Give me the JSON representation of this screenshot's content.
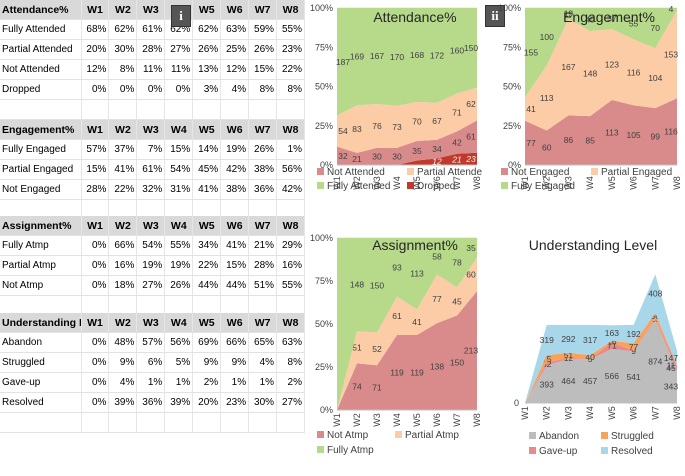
{
  "weeks": [
    "W1",
    "W2",
    "W3",
    "W4",
    "W5",
    "W6",
    "W7",
    "W8"
  ],
  "tables": [
    {
      "title": "Attendance%",
      "rows": [
        {
          "label": "Fully Attended",
          "values": [
            "68%",
            "62%",
            "61%",
            "62%",
            "62%",
            "63%",
            "59%",
            "55%"
          ]
        },
        {
          "label": "Partial Attended",
          "values": [
            "20%",
            "30%",
            "28%",
            "27%",
            "26%",
            "25%",
            "26%",
            "23%"
          ]
        },
        {
          "label": "Not Attended",
          "values": [
            "12%",
            "8%",
            "11%",
            "11%",
            "13%",
            "12%",
            "15%",
            "22%"
          ]
        },
        {
          "label": "Dropped",
          "values": [
            "0%",
            "0%",
            "0%",
            "0%",
            "3%",
            "4%",
            "8%",
            "8%"
          ]
        }
      ]
    },
    {
      "title": "Engagement%",
      "rows": [
        {
          "label": "Fully Engaged",
          "values": [
            "57%",
            "37%",
            "7%",
            "15%",
            "14%",
            "19%",
            "26%",
            "1%"
          ]
        },
        {
          "label": "Partial Engaged",
          "values": [
            "15%",
            "41%",
            "61%",
            "54%",
            "45%",
            "42%",
            "38%",
            "56%"
          ]
        },
        {
          "label": "Not Engaged",
          "values": [
            "28%",
            "22%",
            "32%",
            "31%",
            "41%",
            "38%",
            "36%",
            "42%"
          ]
        }
      ]
    },
    {
      "title": "Assignment%",
      "rows": [
        {
          "label": "Fully Atmp",
          "values": [
            "0%",
            "66%",
            "54%",
            "55%",
            "34%",
            "41%",
            "21%",
            "29%"
          ]
        },
        {
          "label": "Partial Atmp",
          "values": [
            "0%",
            "16%",
            "19%",
            "19%",
            "22%",
            "15%",
            "28%",
            "16%"
          ]
        },
        {
          "label": "Not Atmp",
          "values": [
            "0%",
            "18%",
            "27%",
            "26%",
            "44%",
            "44%",
            "51%",
            "55%"
          ]
        }
      ]
    },
    {
      "title": "Understanding Le",
      "rows": [
        {
          "label": "Abandon",
          "values": [
            "0%",
            "48%",
            "57%",
            "56%",
            "69%",
            "66%",
            "65%",
            "63%"
          ]
        },
        {
          "label": "Struggled",
          "values": [
            "0%",
            "9%",
            "6%",
            "5%",
            "9%",
            "9%",
            "4%",
            "8%"
          ]
        },
        {
          "label": "Gave-up",
          "values": [
            "0%",
            "4%",
            "1%",
            "1%",
            "2%",
            "1%",
            "1%",
            "2%"
          ]
        },
        {
          "label": "Resolved",
          "values": [
            "0%",
            "39%",
            "36%",
            "39%",
            "20%",
            "23%",
            "30%",
            "27%"
          ]
        }
      ]
    }
  ],
  "badges": [
    "i",
    "ii"
  ],
  "chart_data": [
    {
      "type": "area",
      "stacked": "percent",
      "title": "Attendance%",
      "categories": [
        "W1",
        "W2",
        "W3",
        "W4",
        "W5",
        "W6",
        "W7",
        "W8"
      ],
      "yticks": [
        "0%",
        "25%",
        "50%",
        "75%",
        "100%"
      ],
      "colors": {
        "Not Attended": "#d98b8b",
        "Partial Attended": "#fbcca6",
        "Fully Attended": "#b6d98a",
        "Dropped": "#c0392b"
      },
      "series": [
        {
          "name": "Dropped",
          "values": [
            0,
            0,
            0,
            0,
            8,
            12,
            21,
            23
          ],
          "labels": [
            "",
            "",
            "",
            "",
            "",
            "12",
            "21",
            "23"
          ]
        },
        {
          "name": "Not Attended",
          "values": [
            32,
            21,
            30,
            30,
            35,
            34,
            42,
            61
          ],
          "labels": [
            "32",
            "21",
            "30",
            "30",
            "35",
            "34",
            "42",
            "61"
          ]
        },
        {
          "name": "Partial Attended",
          "values": [
            54,
            83,
            76,
            73,
            70,
            67,
            71,
            62
          ],
          "labels": [
            "54",
            "83",
            "76",
            "73",
            "70",
            "67",
            "71",
            "62"
          ]
        },
        {
          "name": "Fully Attended",
          "values": [
            187,
            169,
            167,
            170,
            168,
            172,
            160,
            150
          ],
          "labels": [
            "187",
            "169",
            "167",
            "170",
            "168",
            "172",
            "160",
            "150"
          ]
        }
      ],
      "legend": [
        "Not Attended",
        "Partial Attende",
        "Fully Attended",
        "Dropped"
      ]
    },
    {
      "type": "area",
      "stacked": "percent",
      "title": "Engagement%",
      "categories": [
        "W1",
        "W2",
        "W3",
        "W4",
        "W5",
        "W6",
        "W7",
        "W8"
      ],
      "yticks": [
        "0%",
        "25%",
        "50%",
        "75%",
        "100%"
      ],
      "colors": {
        "Not Engaged": "#d98b8b",
        "Partial Engaged": "#fbcca6",
        "Fully Engaged": "#b6d98a"
      },
      "series": [
        {
          "name": "Not Engaged",
          "values": [
            77,
            60,
            86,
            85,
            113,
            105,
            99,
            116
          ],
          "labels": [
            "77",
            "60",
            "86",
            "85",
            "113",
            "105",
            "99",
            "116"
          ]
        },
        {
          "name": "Partial Engaged",
          "values": [
            41,
            113,
            167,
            148,
            123,
            116,
            104,
            153
          ],
          "labels": [
            "41",
            "113",
            "167",
            "148",
            "123",
            "116",
            "104",
            "153"
          ]
        },
        {
          "name": "Fully Engaged",
          "values": [
            155,
            100,
            19,
            40,
            37,
            55,
            70,
            4
          ],
          "labels": [
            "155",
            "100",
            "19",
            "40",
            "37",
            "55",
            "70",
            "4"
          ]
        }
      ],
      "legend": [
        "Not Engaged",
        "Partial Engaged",
        "Fully Engaged"
      ]
    },
    {
      "type": "area",
      "stacked": "percent",
      "title": "Assignment%",
      "categories": [
        "W1",
        "W2",
        "W3",
        "W4",
        "W5",
        "W6",
        "W7",
        "W8"
      ],
      "yticks": [
        "0%",
        "25%",
        "50%",
        "75%",
        "100%"
      ],
      "colors": {
        "Not Atmp": "#d98b8b",
        "Partial Atmp": "#fbcca6",
        "Fully Atmp": "#b6d98a"
      },
      "series": [
        {
          "name": "Not Atmp",
          "values": [
            0,
            74,
            71,
            119,
            119,
            138,
            150,
            213
          ],
          "labels": [
            "",
            "74",
            "71",
            "119",
            "119",
            "138",
            "150",
            "213"
          ]
        },
        {
          "name": "Partial Atmp",
          "values": [
            0,
            51,
            52,
            61,
            41,
            77,
            45,
            60
          ],
          "labels": [
            "",
            "51",
            "52",
            "61",
            "41",
            "77",
            "45",
            "60"
          ]
        },
        {
          "name": "Fully Atmp",
          "values": [
            0,
            148,
            150,
            93,
            113,
            58,
            78,
            35
          ],
          "labels": [
            "",
            "148",
            "150",
            "93",
            "113",
            "58",
            "78",
            "35"
          ]
        }
      ],
      "legend": [
        "Not Atmp",
        "Partial Atmp",
        "Fully Atmp"
      ]
    },
    {
      "type": "area",
      "stacked": "absolute",
      "title": "Understanding Level",
      "categories": [
        "W1",
        "W2",
        "W3",
        "W4",
        "W5",
        "W6",
        "W7",
        "W8"
      ],
      "ymax": 1500,
      "origin_label": "0",
      "colors": {
        "Abandon": "#bdbdbd",
        "Struggled": "#f7a35c",
        "Gave-up": "#e88a8a",
        "Resolved": "#a9d7ea"
      },
      "series": [
        {
          "name": "Abandon",
          "values": [
            0,
            393,
            464,
            457,
            566,
            541,
            874,
            343
          ],
          "labels": [
            "",
            "393",
            "464",
            "457",
            "566",
            "541",
            "874",
            "343"
          ]
        },
        {
          "name": "Gave-up",
          "values": [
            0,
            32,
            12,
            5,
            71,
            9,
            13,
            45
          ],
          "labels": [
            "",
            "32",
            "12",
            "5",
            "71",
            "9",
            "13",
            "45"
          ]
        },
        {
          "name": "Struggled",
          "values": [
            0,
            75,
            51,
            40,
            16,
            77,
            56,
            11
          ],
          "labels": [
            "",
            "75",
            "51",
            "40",
            "16",
            "77",
            "56",
            "11"
          ]
        },
        {
          "name": "Resolved",
          "values": [
            0,
            319,
            292,
            317,
            163,
            192,
            408,
            147
          ],
          "labels": [
            "",
            "319",
            "292",
            "317",
            "163",
            "192",
            "408",
            "147"
          ]
        }
      ],
      "legend": [
        "Abandon",
        "Struggled",
        "Gave-up",
        "Resolved"
      ]
    }
  ]
}
